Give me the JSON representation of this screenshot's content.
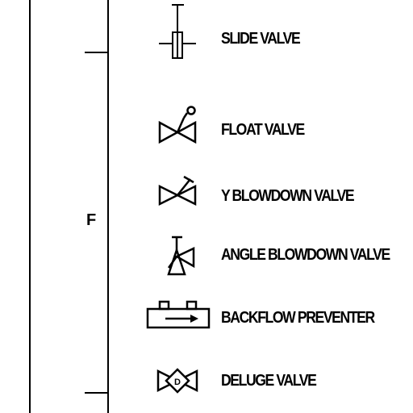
{
  "section": {
    "letter": "F"
  },
  "symbols": [
    {
      "label": "SLIDE VALVE",
      "icon": "slide-valve-icon"
    },
    {
      "label": "FLOAT VALVE",
      "icon": "float-valve-icon"
    },
    {
      "label": "Y BLOWDOWN VALVE",
      "icon": "y-blowdown-valve-icon"
    },
    {
      "label": "ANGLE BLOWDOWN VALVE",
      "icon": "angle-blowdown-valve-icon"
    },
    {
      "label": "BACKFLOW PREVENTER",
      "icon": "backflow-preventer-icon"
    },
    {
      "label": "DELUGE VALVE",
      "icon": "deluge-valve-icon",
      "letter": "D"
    }
  ],
  "colors": {
    "ink": "#000000",
    "background": "#ffffff"
  }
}
